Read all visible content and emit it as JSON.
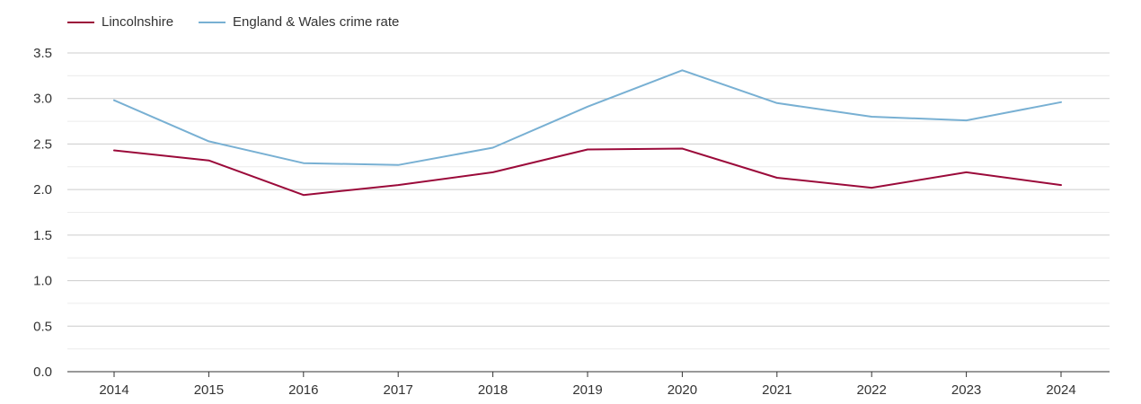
{
  "chart_data": {
    "type": "line",
    "title": "",
    "xlabel": "",
    "ylabel": "",
    "categories": [
      "2014",
      "2015",
      "2016",
      "2017",
      "2018",
      "2019",
      "2020",
      "2021",
      "2022",
      "2023",
      "2024"
    ],
    "ylim": [
      0,
      3.5
    ],
    "yticks": [
      "0.0",
      "0.5",
      "1.0",
      "1.5",
      "2.0",
      "2.5",
      "3.0",
      "3.5"
    ],
    "grid": true,
    "legend_position": "top-left",
    "series": [
      {
        "name": "Lincolnshire",
        "color": "#9b0a3a",
        "values": [
          2.43,
          2.32,
          1.94,
          2.05,
          2.19,
          2.44,
          2.45,
          2.13,
          2.02,
          2.19,
          2.05
        ]
      },
      {
        "name": "England & Wales crime rate",
        "color": "#78b0d3",
        "values": [
          2.98,
          2.53,
          2.29,
          2.27,
          2.46,
          2.91,
          3.31,
          2.95,
          2.8,
          2.76,
          2.96
        ]
      }
    ]
  }
}
